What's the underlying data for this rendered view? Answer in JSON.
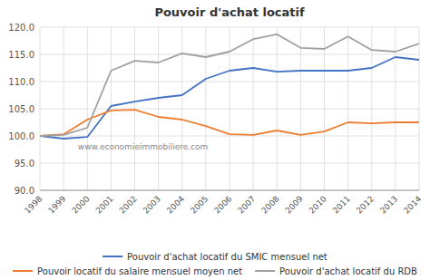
{
  "chart_data": {
    "type": "line",
    "title": "Pouvoir d'achat locatif",
    "x": [
      1998,
      1999,
      2000,
      2001,
      2002,
      2003,
      2004,
      2005,
      2006,
      2007,
      2008,
      2009,
      2010,
      2011,
      2012,
      2013,
      2014
    ],
    "series": [
      {
        "name": "Pouvoir d'achat locatif du SMIC mensuel net",
        "color": "#4472c4",
        "values": [
          100.0,
          99.5,
          99.8,
          105.5,
          106.3,
          107.0,
          107.5,
          110.5,
          112.0,
          112.5,
          111.8,
          112.0,
          112.0,
          112.0,
          112.5,
          114.5,
          114.0
        ]
      },
      {
        "name": "Pouvoir locatif du salaire mensuel moyen net",
        "color": "#ed7d31",
        "values": [
          100.0,
          100.3,
          103.0,
          104.7,
          104.8,
          103.5,
          103.0,
          101.8,
          100.3,
          100.2,
          101.0,
          100.2,
          100.8,
          102.5,
          102.3,
          102.5,
          102.5
        ]
      },
      {
        "name": "Pouvoir d'achat locatif du RDB",
        "color": "#a0a0a0",
        "values": [
          100.0,
          100.2,
          101.5,
          112.0,
          113.8,
          113.5,
          115.2,
          114.5,
          115.5,
          117.8,
          118.7,
          116.2,
          116.0,
          118.3,
          115.8,
          115.5,
          117.0
        ]
      }
    ],
    "xlim": [
      1998,
      2014
    ],
    "xticks": [
      1998,
      1999,
      2000,
      2001,
      2002,
      2003,
      2004,
      2005,
      2006,
      2007,
      2008,
      2009,
      2010,
      2011,
      2012,
      2013,
      2014
    ],
    "ylim": [
      90.0,
      120.0
    ],
    "yticks": [
      {
        "value": 90.0,
        "label": "90.0"
      },
      {
        "value": 95.0,
        "label": "95.0"
      },
      {
        "value": 100.0,
        "label": "100.0"
      },
      {
        "value": 105.0,
        "label": "105.0"
      },
      {
        "value": 110.0,
        "label": "110.0"
      },
      {
        "value": 115.0,
        "label": "115.0"
      },
      {
        "value": 120.0,
        "label": "120.0"
      }
    ],
    "grid": true,
    "legend": "bottom",
    "annotations": [
      "www.economieimmobiliere.com"
    ]
  }
}
